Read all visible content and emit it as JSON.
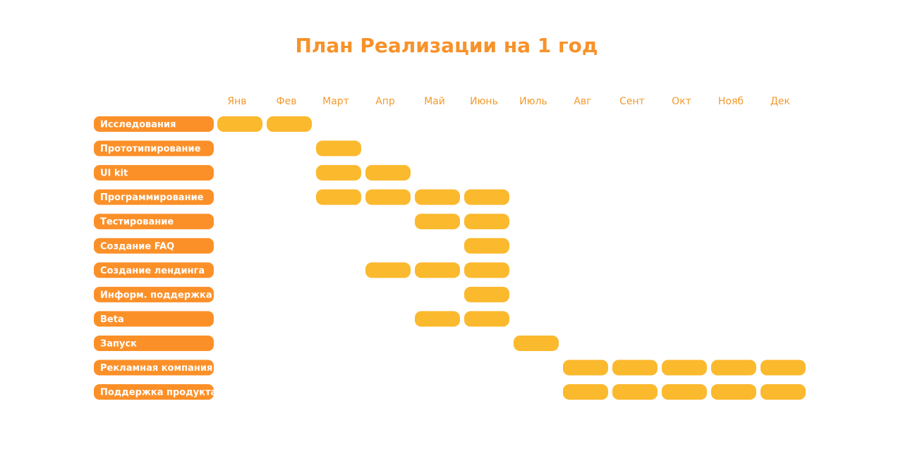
{
  "chart_data": {
    "type": "gantt",
    "title": "План Реализации на 1 год",
    "categories": [
      "Янв",
      "Фев",
      "Март",
      "Апр",
      "Май",
      "Июнь",
      "Июль",
      "Авг",
      "Сент",
      "Окт",
      "Нояб",
      "Дек"
    ],
    "color": "#fbb92e",
    "label_color": "#fb9029",
    "tasks": [
      {
        "name": "Исследования",
        "start": 0,
        "end": 1
      },
      {
        "name": "Прототипирование",
        "start": 2,
        "end": 2
      },
      {
        "name": "UI kit",
        "start": 2,
        "end": 3
      },
      {
        "name": "Программирование",
        "start": 2,
        "end": 5
      },
      {
        "name": "Тестирование",
        "start": 4,
        "end": 5
      },
      {
        "name": "Создание FAQ",
        "start": 5,
        "end": 5
      },
      {
        "name": "Создание лендинга",
        "start": 3,
        "end": 5
      },
      {
        "name": "Информ. поддержка",
        "start": 5,
        "end": 5
      },
      {
        "name": "Beta",
        "start": 4,
        "end": 5
      },
      {
        "name": "Запуск",
        "start": 6,
        "end": 6
      },
      {
        "name": "Рекламная компания",
        "start": 7,
        "end": 11
      },
      {
        "name": "Поддержка продукта",
        "start": 7,
        "end": 11
      }
    ]
  }
}
